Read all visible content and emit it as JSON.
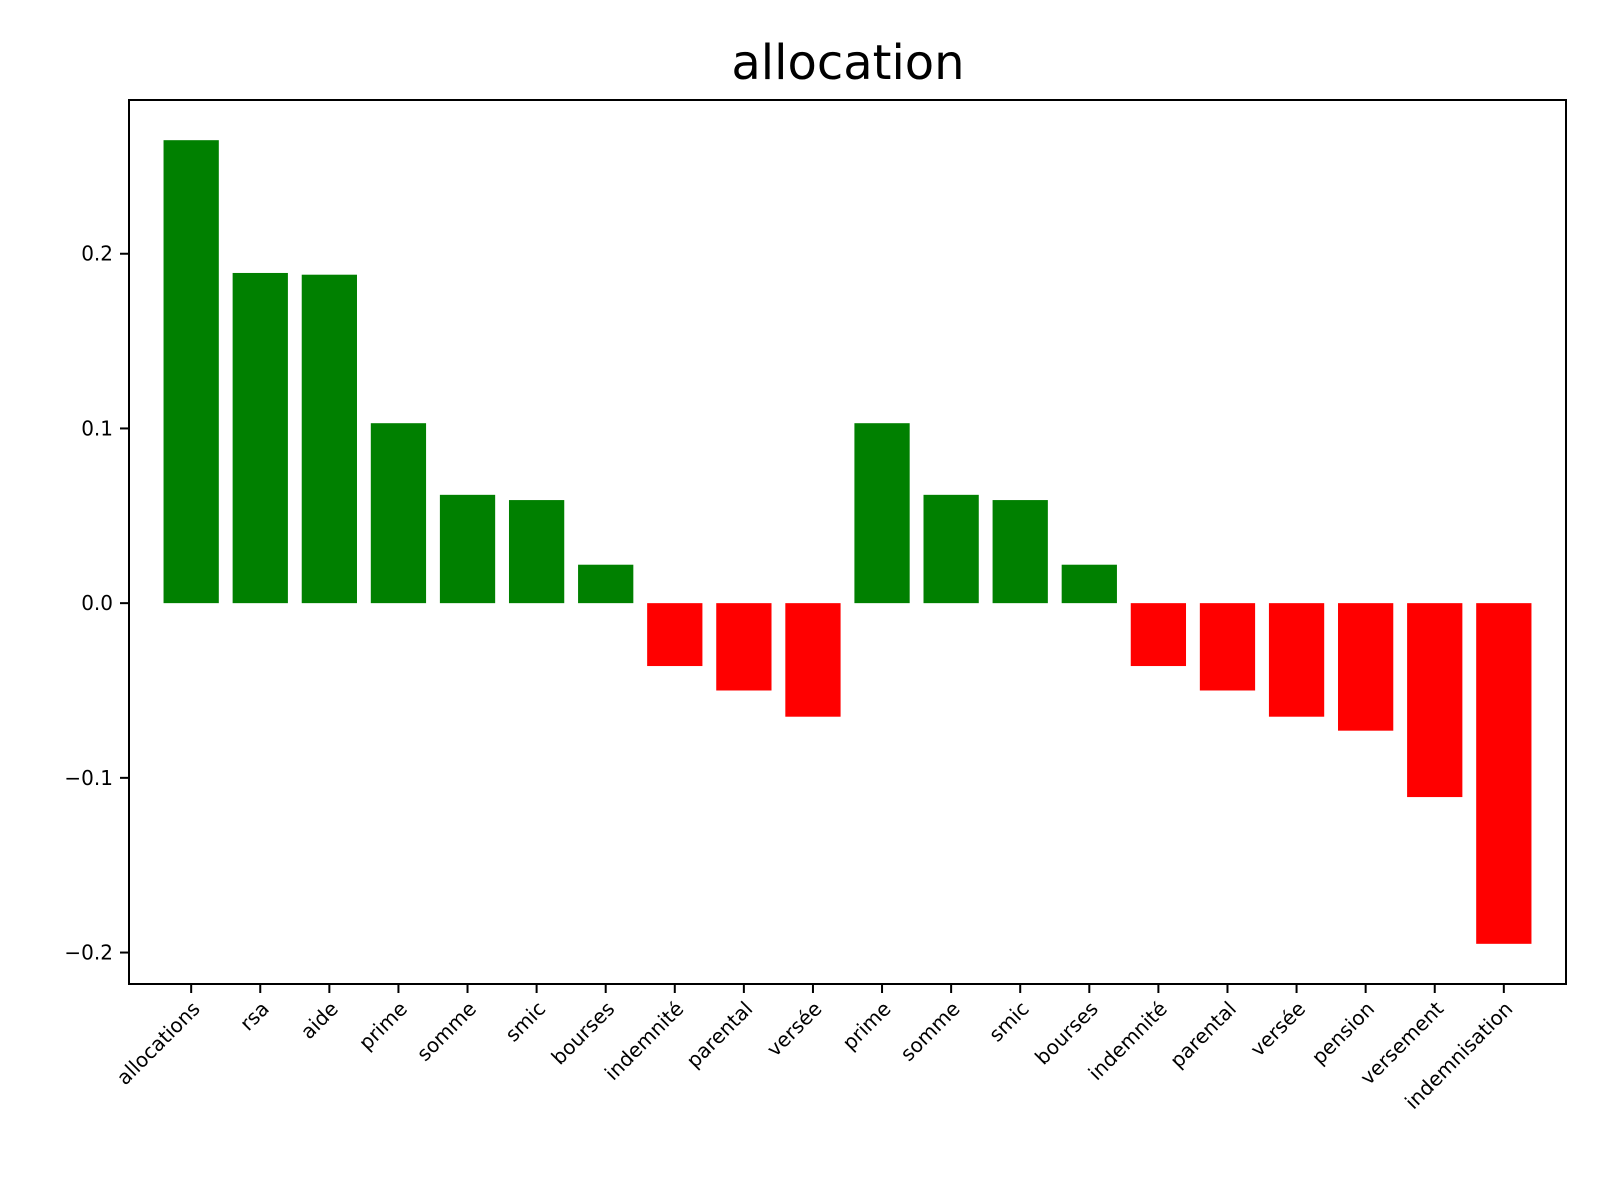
{
  "chart_data": {
    "type": "bar",
    "title": "allocation",
    "xlabel": "",
    "ylabel": "",
    "categories": [
      "allocations",
      "rsa",
      "aide",
      "prime",
      "somme",
      "smic",
      "bourses",
      "indemnité",
      "parental",
      "versée",
      "prime",
      "somme",
      "smic",
      "bourses",
      "indemnité",
      "parental",
      "versée",
      "pension",
      "versement",
      "indemnisation"
    ],
    "values": [
      0.265,
      0.189,
      0.188,
      0.103,
      0.062,
      0.059,
      0.022,
      -0.036,
      -0.05,
      -0.065,
      0.103,
      0.062,
      0.059,
      0.022,
      -0.036,
      -0.05,
      -0.065,
      -0.073,
      -0.111,
      -0.195
    ],
    "colors": {
      "positive": "#008000",
      "negative": "#ff0000"
    },
    "ylim": [
      -0.218,
      0.288
    ],
    "yticks": [
      -0.2,
      -0.1,
      0.0,
      0.1,
      0.2
    ],
    "ytick_labels": [
      "−0.2",
      "−0.1",
      "0.0",
      "0.1",
      "0.2"
    ],
    "grid": false,
    "legend": "none"
  }
}
